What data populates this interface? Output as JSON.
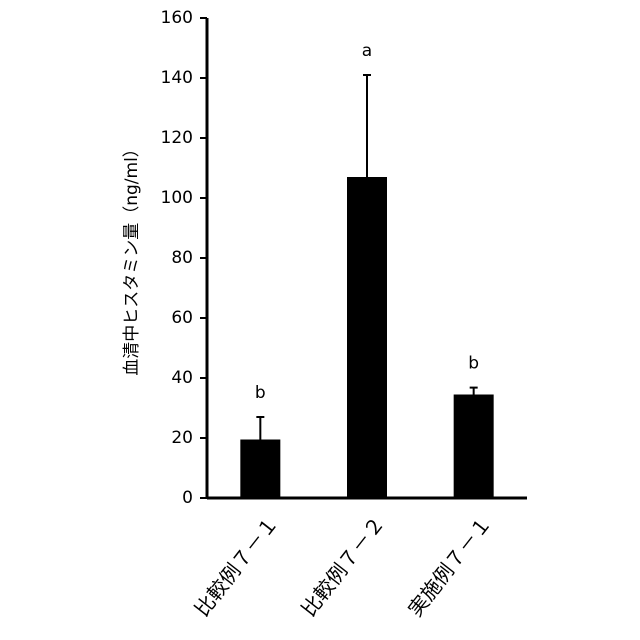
{
  "chart_data": {
    "type": "bar",
    "y_label": "血清中ヒスタミン量（ng/ml）",
    "categories": [
      "比較例７－１",
      "比較例７－２",
      "実施例７－１"
    ],
    "values": [
      19.5,
      107,
      34.5
    ],
    "errors": [
      7.5,
      34,
      2.3
    ],
    "group_labels": [
      "b",
      "a",
      "b"
    ],
    "color": "#000000",
    "ylim": [
      0,
      160
    ],
    "yticks": [
      0,
      20,
      40,
      60,
      80,
      100,
      120,
      140,
      160
    ]
  }
}
